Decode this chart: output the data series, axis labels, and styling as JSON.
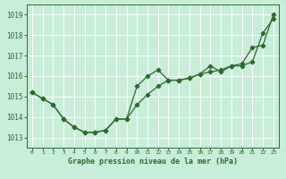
{
  "title": "Graphe pression niveau de la mer (hPa)",
  "bg_color": "#c8edd8",
  "grid_color": "#b0d8c0",
  "line_color": "#2d6b2d",
  "x_labels": [
    "0",
    "1",
    "2",
    "3",
    "4",
    "5",
    "6",
    "7",
    "8",
    "9",
    "10",
    "11",
    "12",
    "13",
    "14",
    "15",
    "16",
    "17",
    "18",
    "19",
    "20",
    "21",
    "22",
    "23"
  ],
  "line1": [
    1015.2,
    1014.9,
    1014.6,
    1013.9,
    1013.5,
    1013.25,
    1013.25,
    1013.35,
    1013.9,
    1013.9,
    1014.6,
    1015.1,
    1015.5,
    1015.8,
    1015.8,
    1015.9,
    1016.1,
    1016.2,
    1016.3,
    1016.5,
    1016.5,
    1016.7,
    1018.1,
    1018.8
  ],
  "line2": [
    1015.2,
    1014.9,
    1014.6,
    1013.9,
    1013.5,
    1013.25,
    1013.25,
    1013.35,
    1013.9,
    1013.9,
    1015.5,
    1016.0,
    1016.3,
    1015.8,
    1015.8,
    1015.9,
    1016.1,
    1016.5,
    1016.2,
    1016.5,
    1016.6,
    1017.4,
    1017.5,
    1019.0
  ],
  "ylim": [
    1012.5,
    1019.5
  ],
  "yticks": [
    1013,
    1014,
    1015,
    1016,
    1017,
    1018,
    1019
  ]
}
